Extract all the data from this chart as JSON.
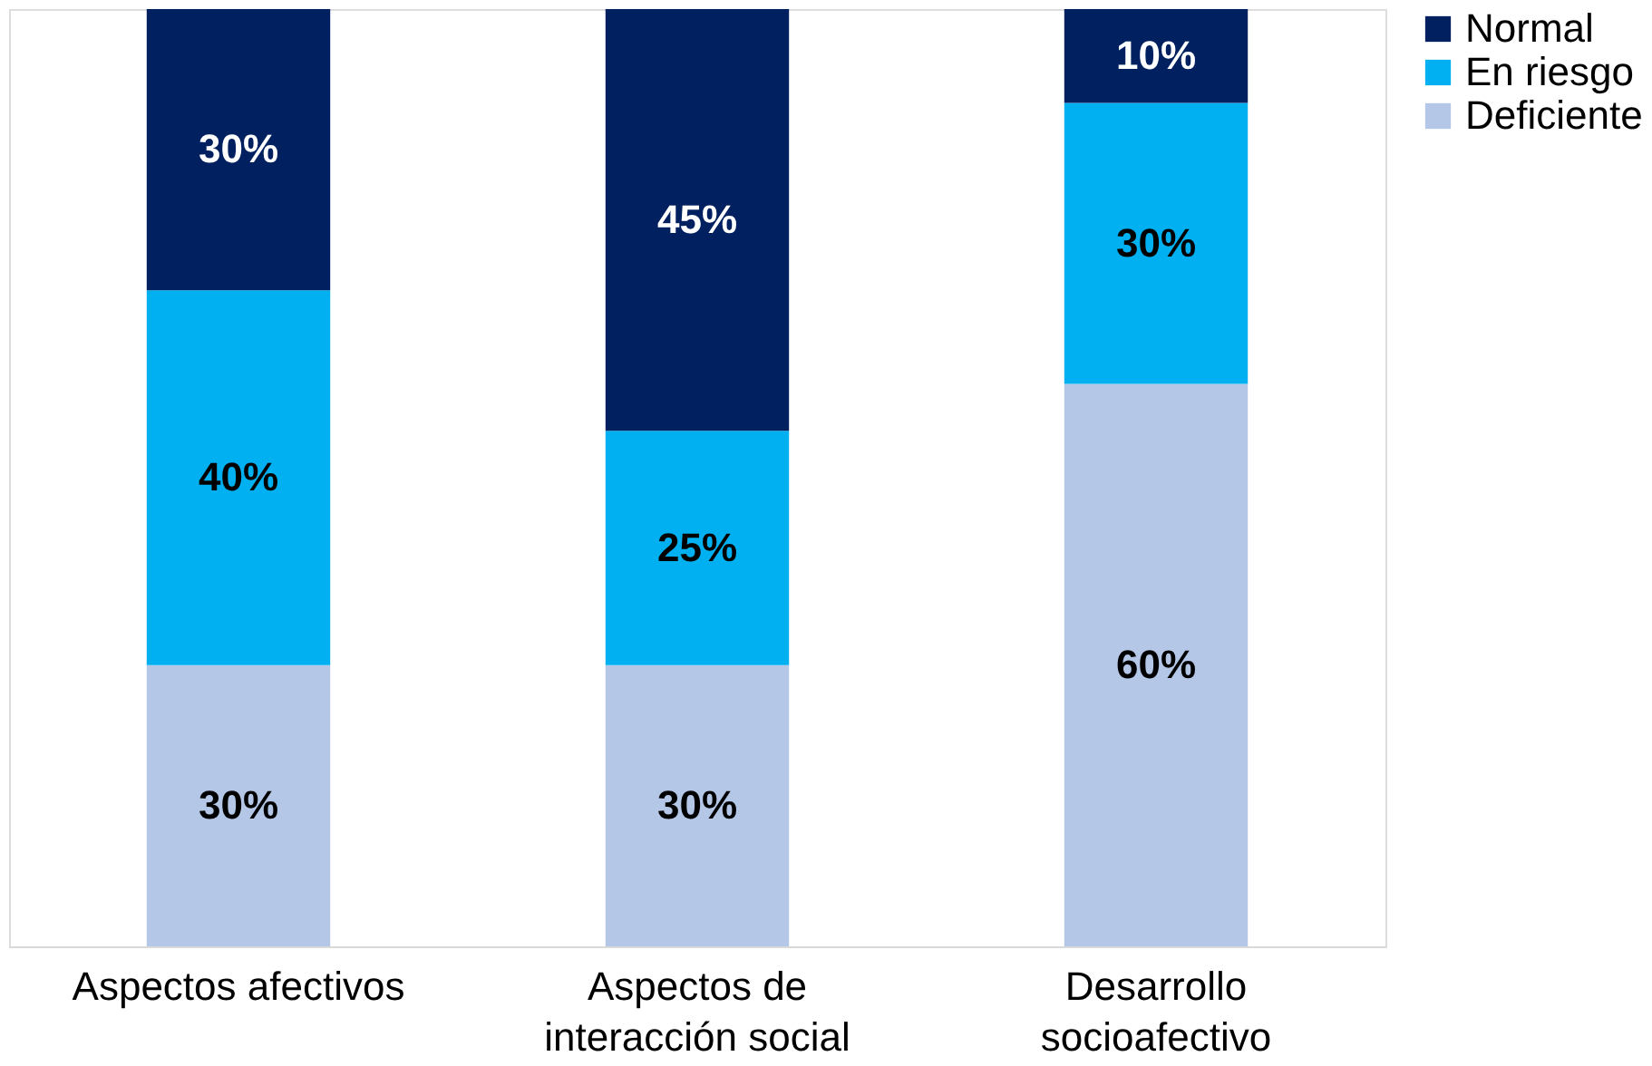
{
  "chart_data": {
    "type": "bar",
    "stacked": true,
    "categories": [
      "Aspectos afectivos",
      "Aspectos de interacción social",
      "Desarrollo socioafectivo"
    ],
    "series": [
      {
        "name": "Deficiente",
        "color": "#b4c7e7",
        "values": [
          30,
          30,
          60
        ],
        "value_labels": [
          "30%",
          "30%",
          "60%"
        ]
      },
      {
        "name": "En riesgo",
        "color": "#00b0f0",
        "values": [
          40,
          25,
          30
        ],
        "value_labels": [
          "40%",
          "25%",
          "30%"
        ]
      },
      {
        "name": "Normal",
        "color": "#002060",
        "values": [
          30,
          45,
          10
        ],
        "value_labels": [
          "30%",
          "45%",
          "10%"
        ]
      }
    ],
    "ylim": [
      0,
      100
    ],
    "tick_labels": "x",
    "legend": "right",
    "grid": false
  }
}
